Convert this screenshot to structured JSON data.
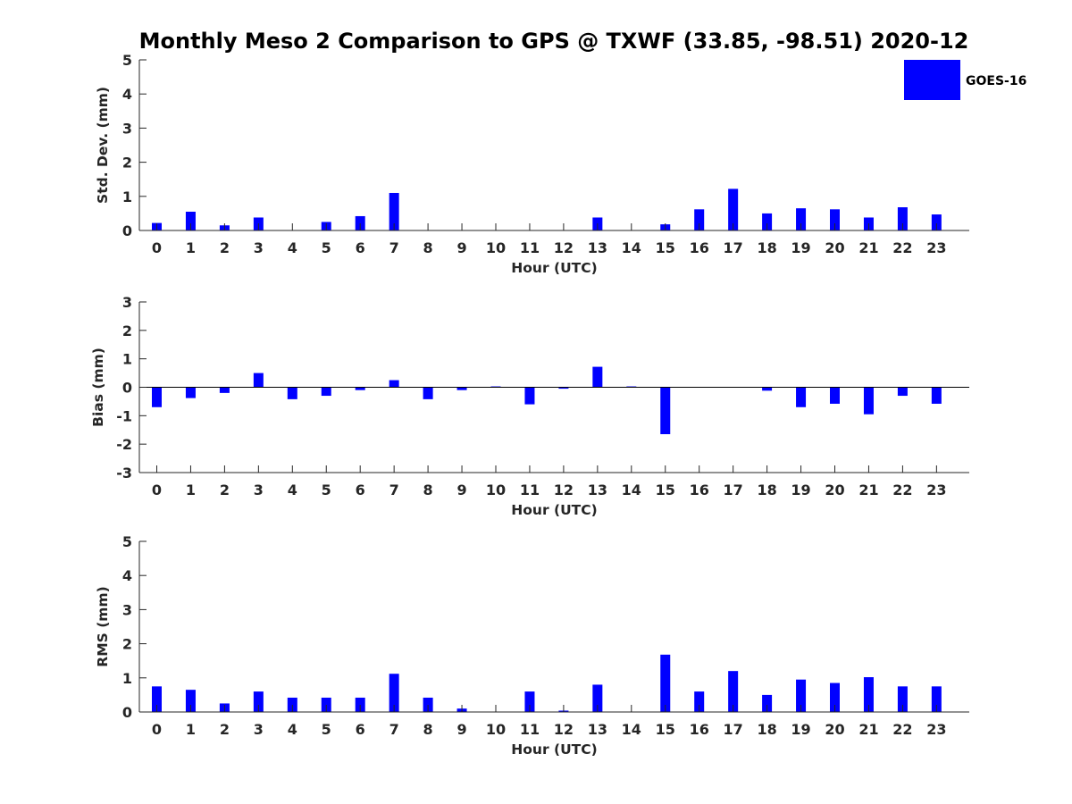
{
  "title": "Monthly Meso 2 Comparison to GPS @ TXWF (33.85, -98.51) 2020-12",
  "legend": {
    "label": "GOES-16",
    "color": "#0000ff",
    "position": "top-right"
  },
  "chart_data": [
    {
      "type": "bar",
      "ylabel": "Std. Dev. (mm)",
      "xlabel": "Hour (UTC)",
      "ylim": [
        0,
        5
      ],
      "yticks": [
        0,
        1,
        2,
        3,
        4,
        5
      ],
      "categories": [
        "0",
        "1",
        "2",
        "3",
        "4",
        "5",
        "6",
        "7",
        "8",
        "9",
        "10",
        "11",
        "12",
        "13",
        "14",
        "15",
        "16",
        "17",
        "18",
        "19",
        "20",
        "21",
        "22",
        "23"
      ],
      "series": [
        {
          "name": "GOES-16",
          "color": "#0000ff",
          "values": [
            0.22,
            0.55,
            0.15,
            0.38,
            0,
            0.25,
            0.42,
            1.1,
            0,
            0,
            0,
            0,
            0,
            0.38,
            0,
            0.18,
            0.62,
            1.22,
            0.5,
            0.65,
            0.62,
            0.38,
            0.68,
            0.47
          ]
        }
      ]
    },
    {
      "type": "bar",
      "ylabel": "Bias (mm)",
      "xlabel": "Hour (UTC)",
      "ylim": [
        -3,
        3
      ],
      "yticks": [
        -3,
        -2,
        -1,
        0,
        1,
        2,
        3
      ],
      "categories": [
        "0",
        "1",
        "2",
        "3",
        "4",
        "5",
        "6",
        "7",
        "8",
        "9",
        "10",
        "11",
        "12",
        "13",
        "14",
        "15",
        "16",
        "17",
        "18",
        "19",
        "20",
        "21",
        "22",
        "23"
      ],
      "series": [
        {
          "name": "GOES-16",
          "color": "#0000ff",
          "values": [
            -0.7,
            -0.38,
            -0.2,
            0.5,
            -0.42,
            -0.3,
            -0.1,
            0.25,
            -0.42,
            -0.1,
            0.03,
            -0.6,
            -0.05,
            0.72,
            0.03,
            -1.65,
            0,
            0,
            -0.12,
            -0.7,
            -0.58,
            -0.95,
            -0.3,
            -0.58
          ]
        }
      ]
    },
    {
      "type": "bar",
      "ylabel": "RMS (mm)",
      "xlabel": "Hour (UTC)",
      "ylim": [
        0,
        5
      ],
      "yticks": [
        0,
        1,
        2,
        3,
        4,
        5
      ],
      "categories": [
        "0",
        "1",
        "2",
        "3",
        "4",
        "5",
        "6",
        "7",
        "8",
        "9",
        "10",
        "11",
        "12",
        "13",
        "14",
        "15",
        "16",
        "17",
        "18",
        "19",
        "20",
        "21",
        "22",
        "23"
      ],
      "series": [
        {
          "name": "GOES-16",
          "color": "#0000ff",
          "values": [
            0.75,
            0.65,
            0.25,
            0.6,
            0.42,
            0.42,
            0.42,
            1.12,
            0.42,
            0.1,
            0,
            0.6,
            0.04,
            0.8,
            0,
            1.68,
            0.6,
            1.2,
            0.5,
            0.95,
            0.85,
            1.02,
            0.75,
            0.75
          ]
        }
      ]
    }
  ]
}
